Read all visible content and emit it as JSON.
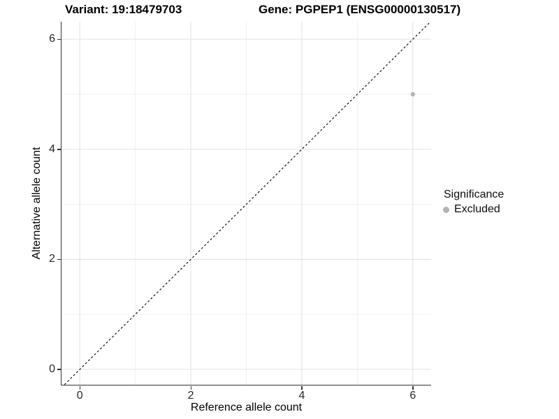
{
  "titles": {
    "variant": "Variant: 19:18479703",
    "gene": "Gene: PGPEP1 (ENSG00000130517)"
  },
  "axes": {
    "x": {
      "label": "Reference allele count",
      "tick_values": [
        0,
        2,
        4,
        6
      ],
      "tick_labels": [
        "0",
        "2",
        "4",
        "6"
      ]
    },
    "y": {
      "label": "Alternative allele count",
      "tick_values": [
        0,
        2,
        4,
        6
      ],
      "tick_labels": [
        "0",
        "2",
        "4",
        "6"
      ]
    }
  },
  "legend": {
    "title": "Significance",
    "items": [
      {
        "label": "Excluded",
        "color": "#b3b3b3"
      }
    ]
  },
  "chart_data": {
    "type": "scatter",
    "title": "Variant: 19:18479703 — Gene: PGPEP1 (ENSG00000130517)",
    "xlabel": "Reference allele count",
    "ylabel": "Alternative allele count",
    "xlim": [
      -0.33,
      6.33
    ],
    "ylim": [
      -0.28,
      6.32
    ],
    "x_ticks": [
      0,
      2,
      4,
      6
    ],
    "y_ticks": [
      0,
      2,
      4,
      6
    ],
    "grid": {
      "major": [
        0,
        2,
        4,
        6
      ],
      "minor": [
        1,
        3,
        5
      ],
      "major_color": "#e5e5e5",
      "minor_color": "#f0f0f0"
    },
    "identity_line": {
      "equation": "y = x",
      "style": "dashed",
      "color": "#000000",
      "dash": [
        3,
        3
      ]
    },
    "series": [
      {
        "name": "Excluded",
        "color": "#b5b5b5",
        "point_radius": 3.2,
        "points": [
          {
            "x": 6,
            "y": 5
          }
        ]
      }
    ],
    "legend_position": "right"
  }
}
